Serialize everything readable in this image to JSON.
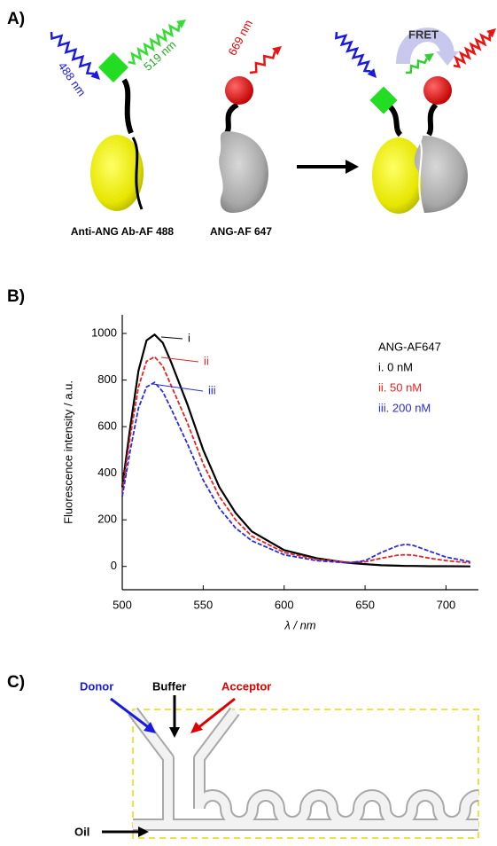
{
  "panel_a": {
    "label": "A)",
    "donor_excitation": "488 nm",
    "donor_emission": "519 nm",
    "acceptor_emission": "669 nm",
    "fret": "FRET",
    "donor_label": "Anti-ANG Ab-AF 488",
    "acceptor_label": "ANG-AF 647"
  },
  "panel_b": {
    "label": "B)"
  },
  "chart_data": {
    "type": "line",
    "xlabel": "λ / nm",
    "ylabel": "Fluorescence intensity / a.u.",
    "legend_title": "ANG-AF647",
    "curve_labels": [
      "i",
      "ii",
      "iii"
    ],
    "x": [
      500,
      505,
      510,
      515,
      520,
      525,
      530,
      540,
      550,
      560,
      570,
      580,
      600,
      620,
      640,
      650,
      660,
      670,
      675,
      680,
      690,
      700,
      715
    ],
    "series": [
      {
        "name": "i. 0 nM",
        "color": "#000000",
        "dash": false,
        "values": [
          340,
          600,
          840,
          970,
          995,
          960,
          880,
          700,
          500,
          340,
          230,
          150,
          70,
          35,
          15,
          10,
          5,
          3,
          2,
          2,
          1,
          1,
          0
        ]
      },
      {
        "name": "ii. 50 nM",
        "color": "#e8231f",
        "dash": true,
        "values": [
          320,
          560,
          770,
          880,
          900,
          860,
          780,
          620,
          440,
          300,
          200,
          130,
          60,
          30,
          18,
          20,
          35,
          48,
          50,
          48,
          35,
          25,
          15
        ]
      },
      {
        "name": "iii. 200 nM",
        "color": "#2a2ae0",
        "dash": true,
        "values": [
          300,
          500,
          680,
          770,
          790,
          750,
          680,
          530,
          370,
          250,
          165,
          110,
          50,
          25,
          15,
          25,
          60,
          88,
          95,
          90,
          65,
          40,
          20
        ]
      }
    ],
    "xlim": [
      500,
      720
    ],
    "xticks": [
      500,
      550,
      600,
      650,
      700
    ],
    "ylim": [
      -100,
      1080
    ],
    "yticks": [
      0,
      200,
      400,
      600,
      800,
      1000
    ],
    "grid": false
  },
  "panel_c": {
    "label": "C)",
    "inlets": [
      "Donor",
      "Buffer",
      "Acceptor"
    ],
    "oil": "Oil"
  }
}
